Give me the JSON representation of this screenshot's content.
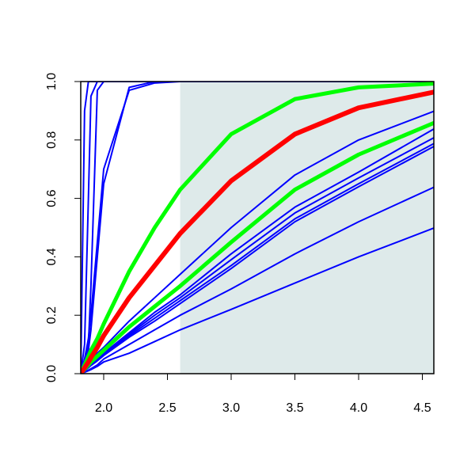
{
  "chart_data": {
    "type": "line",
    "x": [
      1.82,
      1.85,
      1.88,
      1.9,
      1.95,
      2.0,
      2.2,
      2.4,
      2.6,
      3.0,
      3.5,
      4.0,
      4.6
    ],
    "series": [
      {
        "color": "#0000ff",
        "line_width": 2,
        "values": [
          0,
          0.9,
          1,
          1,
          1,
          1,
          1,
          1,
          1,
          1,
          1,
          1,
          1
        ]
      },
      {
        "color": "#0000ff",
        "line_width": 2,
        "values": [
          0,
          0.1,
          0.6,
          0.95,
          1,
          1,
          1,
          1,
          1,
          1,
          1,
          1,
          1
        ]
      },
      {
        "color": "#0000ff",
        "line_width": 2,
        "values": [
          0,
          0.02,
          0.1,
          0.3,
          0.97,
          1,
          1,
          1,
          1,
          1,
          1,
          1,
          1
        ]
      },
      {
        "color": "#0000ff",
        "line_width": 2,
        "values": [
          0,
          0.03,
          0.08,
          0.15,
          0.4,
          0.65,
          0.98,
          1,
          1,
          1,
          1,
          1,
          1
        ]
      },
      {
        "color": "#0000ff",
        "line_width": 2,
        "values": [
          0,
          0.05,
          0.12,
          0.2,
          0.45,
          0.7,
          0.97,
          0.995,
          1,
          1,
          1,
          1,
          1
        ]
      },
      {
        "color": "#0000ff",
        "line_width": 2,
        "values": [
          0,
          0.02,
          0.04,
          0.05,
          0.07,
          0.09,
          0.18,
          0.26,
          0.34,
          0.5,
          0.68,
          0.8,
          0.9
        ]
      },
      {
        "color": "#0000ff",
        "line_width": 2,
        "values": [
          0,
          0.012,
          0.025,
          0.033,
          0.05,
          0.07,
          0.14,
          0.21,
          0.27,
          0.41,
          0.57,
          0.69,
          0.84
        ]
      },
      {
        "color": "#0000ff",
        "line_width": 2,
        "values": [
          0,
          0.011,
          0.023,
          0.031,
          0.048,
          0.068,
          0.135,
          0.2,
          0.26,
          0.39,
          0.55,
          0.67,
          0.81
        ]
      },
      {
        "color": "#0000ff",
        "line_width": 2,
        "values": [
          0,
          0.01,
          0.022,
          0.03,
          0.046,
          0.065,
          0.13,
          0.19,
          0.25,
          0.37,
          0.53,
          0.65,
          0.79
        ]
      },
      {
        "color": "#0000ff",
        "line_width": 2,
        "values": [
          0,
          0.01,
          0.02,
          0.028,
          0.044,
          0.062,
          0.125,
          0.18,
          0.24,
          0.36,
          0.52,
          0.64,
          0.78
        ]
      },
      {
        "color": "#0000ff",
        "line_width": 2,
        "values": [
          0,
          0.006,
          0.012,
          0.017,
          0.03,
          0.05,
          0.1,
          0.15,
          0.2,
          0.29,
          0.41,
          0.52,
          0.64
        ]
      },
      {
        "color": "#0000ff",
        "line_width": 2,
        "values": [
          0,
          0.005,
          0.01,
          0.014,
          0.025,
          0.04,
          0.07,
          0.11,
          0.15,
          0.22,
          0.31,
          0.4,
          0.5
        ]
      },
      {
        "color": "#00ff00",
        "line_width": 5,
        "values": [
          0,
          0.015,
          0.03,
          0.04,
          0.06,
          0.08,
          0.16,
          0.23,
          0.3,
          0.45,
          0.63,
          0.75,
          0.86
        ]
      },
      {
        "color": "#00ff00",
        "line_width": 5,
        "values": [
          0,
          0.03,
          0.06,
          0.08,
          0.12,
          0.17,
          0.35,
          0.5,
          0.63,
          0.82,
          0.94,
          0.98,
          0.993
        ]
      },
      {
        "color": "#ff0000",
        "line_width": 6,
        "values": [
          0,
          0.02,
          0.04,
          0.055,
          0.09,
          0.13,
          0.26,
          0.37,
          0.48,
          0.66,
          0.82,
          0.91,
          0.965
        ]
      }
    ],
    "shaded_region": {
      "xmin": 2.6,
      "color": "#deeaea"
    },
    "xlim": [
      1.82,
      4.59
    ],
    "ylim": [
      0,
      1
    ],
    "xticks": [
      {
        "value": 2,
        "label": "2.0"
      },
      2.5,
      {
        "value": 3,
        "label": "3.0"
      },
      3.5,
      {
        "value": 4,
        "label": "4.0"
      },
      4.5
    ],
    "yticks": [
      {
        "value": 0,
        "label": "0.0"
      },
      0.2,
      0.4,
      0.6,
      0.8,
      {
        "value": 1,
        "label": "1.0"
      }
    ]
  }
}
